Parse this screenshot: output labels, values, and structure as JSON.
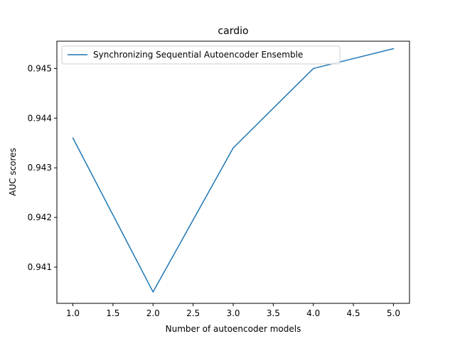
{
  "chart_data": {
    "type": "line",
    "title": "cardio",
    "xlabel": "Number of autoencoder models",
    "ylabel": "AUC scores",
    "x": [
      1,
      2,
      3,
      4,
      5
    ],
    "series": [
      {
        "name": "Synchronizing Sequential Autoencoder Ensemble",
        "values": [
          0.9436,
          0.9405,
          0.9434,
          0.945,
          0.9454
        ],
        "color": "#1f77b4"
      }
    ],
    "xlim": [
      0.8,
      5.2
    ],
    "ylim": [
      0.94027,
      0.94555
    ],
    "xticks": [
      1.0,
      1.5,
      2.0,
      2.5,
      3.0,
      3.5,
      4.0,
      4.5,
      5.0
    ],
    "xtick_labels": [
      "1.0",
      "1.5",
      "2.0",
      "2.5",
      "3.0",
      "3.5",
      "4.0",
      "4.5",
      "5.0"
    ],
    "yticks": [
      0.941,
      0.942,
      0.943,
      0.944,
      0.945
    ],
    "ytick_labels": [
      "0.941",
      "0.942",
      "0.943",
      "0.944",
      "0.945"
    ],
    "grid": false,
    "legend_position": "upper-left"
  }
}
